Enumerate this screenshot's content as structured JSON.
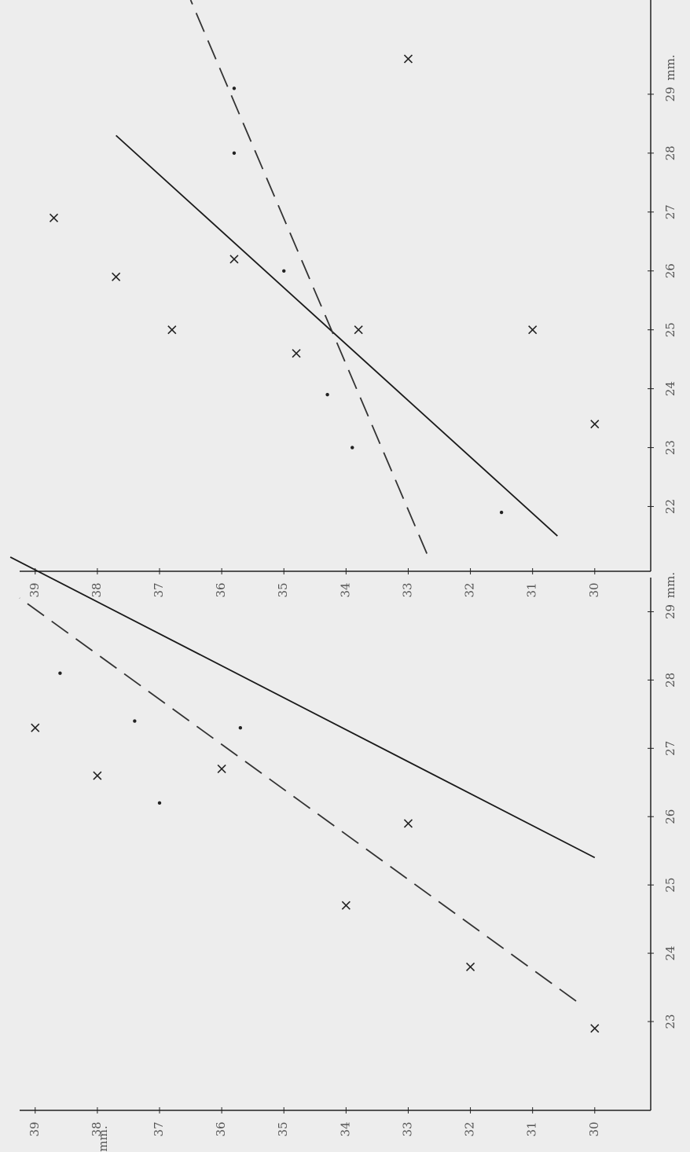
{
  "chart_data": [
    {
      "type": "scatter",
      "xlim": [
        20.9,
        30.6
      ],
      "xticks": [
        22,
        23,
        24,
        25,
        26,
        27,
        28,
        29
      ],
      "x_unit": "mm.",
      "ylim": [
        29.1,
        39.25
      ],
      "yticks": [
        30,
        31,
        32,
        33,
        34,
        35,
        36,
        37,
        38,
        39
      ],
      "series": [
        {
          "marker": "x",
          "color": "#222222",
          "x": [
            29.6,
            26.9,
            25.9,
            25.0,
            26.2,
            24.6,
            25.0,
            25.0,
            23.4
          ],
          "values": [
            33,
            38.7,
            37.7,
            36.8,
            35.8,
            34.8,
            33.8,
            31,
            30
          ]
        },
        {
          "marker": "dot",
          "color": "#222222",
          "x": [
            29.1,
            28.0,
            23.9,
            23.0,
            21.9,
            26.0
          ],
          "values": [
            35.8,
            35.8,
            34.3,
            33.9,
            31.5,
            35
          ]
        }
      ],
      "lines": [
        {
          "style": "solid",
          "color": "#1a1a1a",
          "x": [
            21.5,
            28.3
          ],
          "values": [
            30.6,
            37.7
          ]
        },
        {
          "style": "dashed",
          "color": "#333333",
          "x": [
            21.2,
            30.6
          ],
          "values": [
            32.7,
            36.5
          ]
        }
      ]
    },
    {
      "type": "scatter",
      "xlim": [
        21.7,
        29.5
      ],
      "xticks": [
        23,
        24,
        25,
        26,
        27,
        28,
        29
      ],
      "x_unit": "mm.",
      "ylim": [
        29.1,
        39.25
      ],
      "yticks": [
        30,
        31,
        32,
        33,
        34,
        35,
        36,
        37,
        38,
        39
      ],
      "y_unit": "mm.",
      "series": [
        {
          "marker": "x",
          "color": "#222222",
          "x": [
            22.9,
            23.8,
            24.7,
            25.9,
            26.6,
            26.7,
            27.3
          ],
          "values": [
            30,
            32,
            34,
            33,
            38,
            36,
            39
          ]
        },
        {
          "marker": "dot",
          "color": "#222222",
          "x": [
            26.2,
            27.4,
            27.3,
            28.1
          ],
          "values": [
            37,
            37.4,
            35.7,
            38.6
          ]
        }
      ],
      "lines": [
        {
          "style": "solid",
          "color": "#1a1a1a",
          "x": [
            25.4,
            29.8
          ],
          "values": [
            30,
            39.4
          ]
        },
        {
          "style": "dashed",
          "color": "#333333",
          "x": [
            23.3,
            29.2
          ],
          "values": [
            30.3,
            39.25
          ]
        }
      ]
    }
  ]
}
